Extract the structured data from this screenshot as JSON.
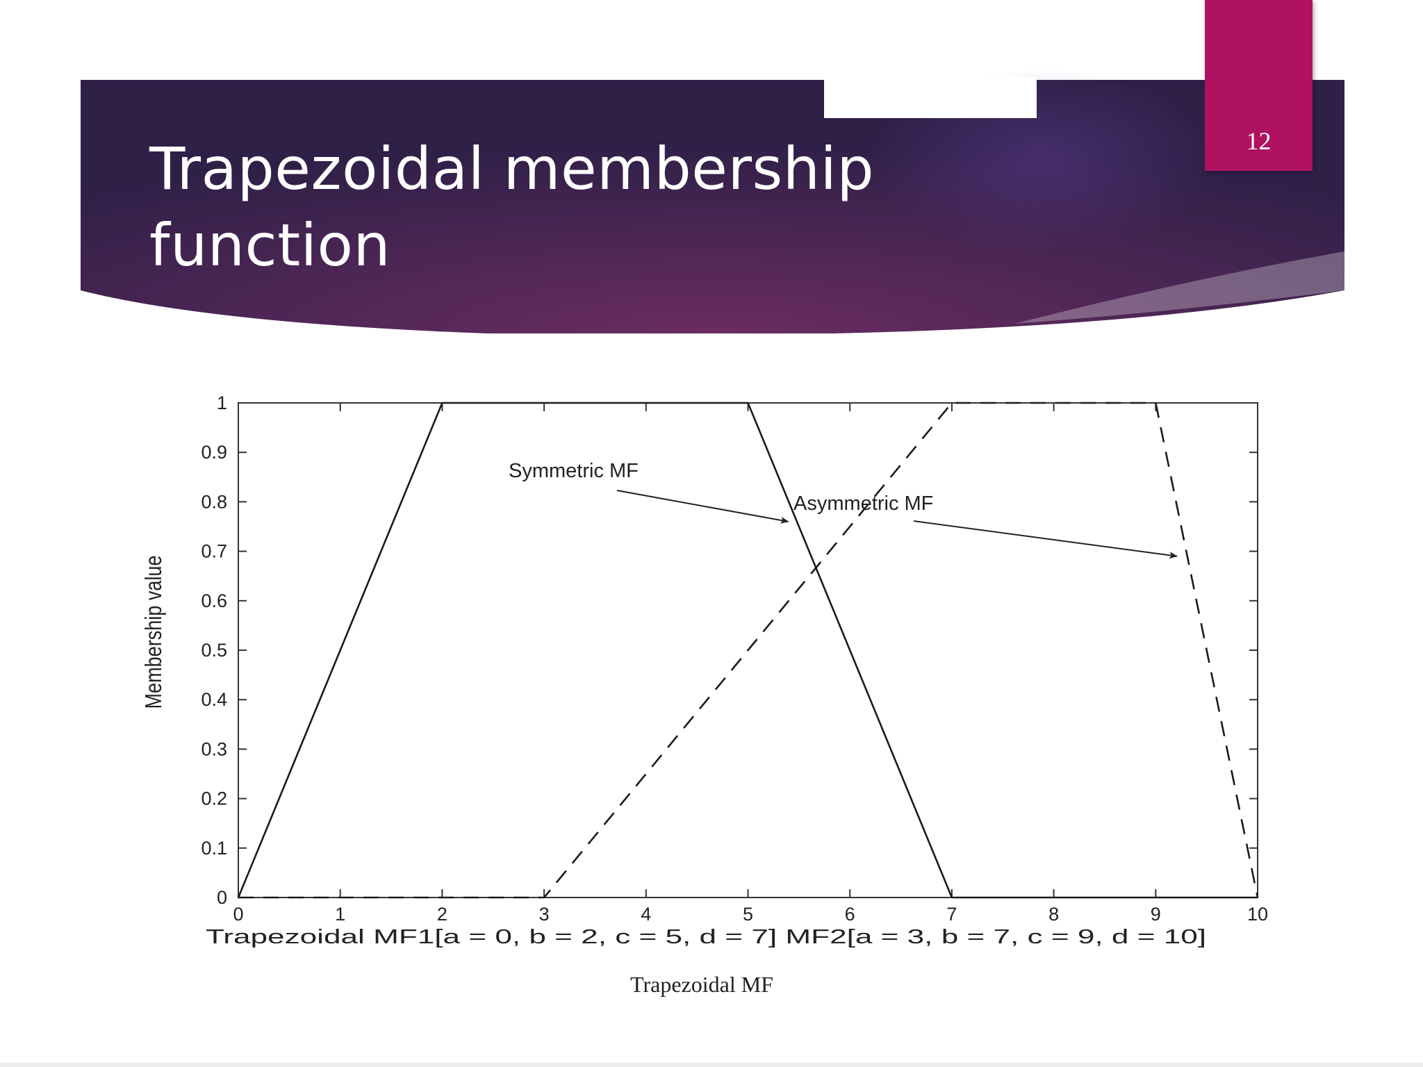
{
  "slide": {
    "title_line1": "Trapezoidal membership",
    "title_line2": "function",
    "page_number": "12",
    "colors": {
      "banner_dark": "#2f2048",
      "banner_mid": "#6a2c62",
      "accent_box": "#b01262"
    }
  },
  "chart_data": {
    "type": "line",
    "ylabel": "Membership value",
    "xlabel": "Trapezoidal MF1[a = 0, b = 2, c = 5, d = 7] MF2[a = 3, b = 7, c = 9, d = 10]",
    "caption": "Trapezoidal MF",
    "xlim": [
      0,
      10
    ],
    "ylim": [
      0,
      1
    ],
    "xticks": [
      "0",
      "1",
      "2",
      "3",
      "4",
      "5",
      "6",
      "7",
      "8",
      "9",
      "10"
    ],
    "yticks": [
      "0",
      "0.1",
      "0.2",
      "0.3",
      "0.4",
      "0.5",
      "0.6",
      "0.7",
      "0.8",
      "0.9",
      "1"
    ],
    "series": [
      {
        "style": "solid",
        "x": [
          0,
          2,
          5,
          7,
          10
        ],
        "y": [
          0,
          1,
          1,
          0,
          0
        ]
      },
      {
        "style": "dashed",
        "x": [
          0,
          3,
          7,
          9,
          10
        ],
        "y": [
          0,
          0,
          1,
          1,
          0
        ]
      }
    ],
    "annotations": [
      {
        "text": "Symmetric MF",
        "target": [
          5.45,
          0.76
        ]
      },
      {
        "text": "Asymmetric MF",
        "target": [
          9.25,
          0.69
        ]
      }
    ],
    "grid": false
  }
}
